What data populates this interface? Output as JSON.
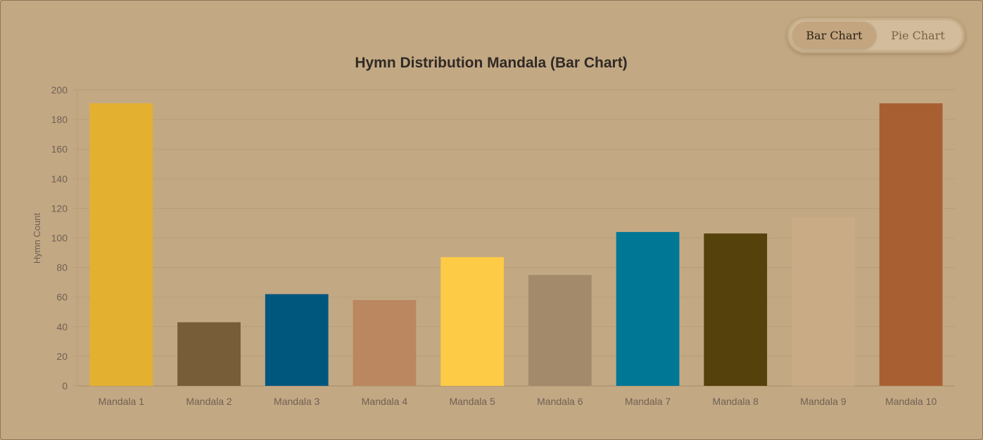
{
  "toggle": {
    "bar_label": "Bar Chart",
    "pie_label": "Pie Chart",
    "active": "bar"
  },
  "colors": {
    "background": "#c3a884",
    "grid": "#b89d78",
    "axis_text": "#6f6152",
    "title": "#2f2a24"
  },
  "chart_data": {
    "type": "bar",
    "title": "Hymn Distribution Mandala (Bar Chart)",
    "xlabel": "",
    "ylabel": "Hymn Count",
    "ylim": [
      0,
      200
    ],
    "yticks": [
      0,
      20,
      40,
      60,
      80,
      100,
      120,
      140,
      160,
      180,
      200
    ],
    "grid": true,
    "categories": [
      "Mandala 1",
      "Mandala 2",
      "Mandala 3",
      "Mandala 4",
      "Mandala 5",
      "Mandala 6",
      "Mandala 7",
      "Mandala 8",
      "Mandala 9",
      "Mandala 10"
    ],
    "values": [
      191,
      43,
      62,
      58,
      87,
      75,
      104,
      103,
      114,
      191
    ],
    "bar_colors": [
      "#e3b030",
      "#775e38",
      "#00577d",
      "#ba8760",
      "#fdcb45",
      "#a38a6a",
      "#007895",
      "#55410b",
      "#c9ab86",
      "#a86032"
    ]
  }
}
